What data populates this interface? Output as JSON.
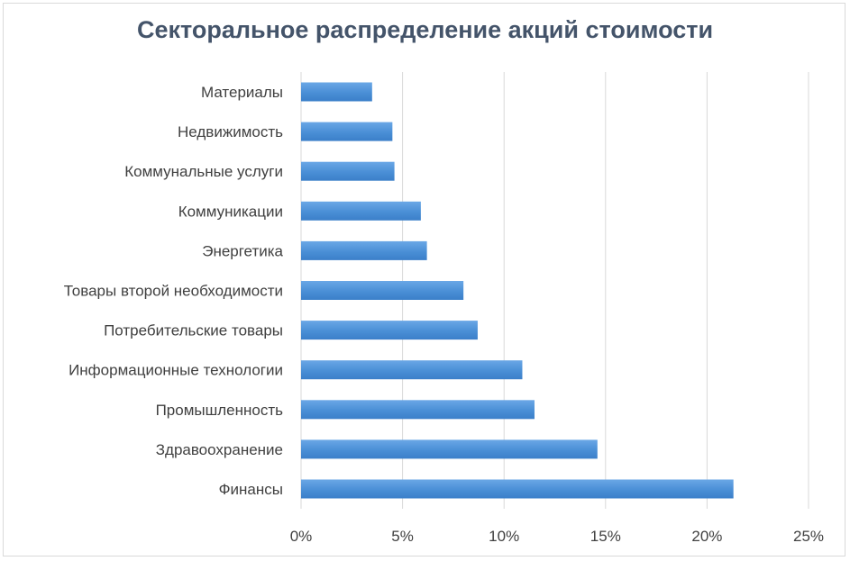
{
  "chart_data": {
    "type": "bar",
    "orientation": "horizontal",
    "title": "Секторальное распределение акций стоимости",
    "categories": [
      "Финансы",
      "Здравоохранение",
      "Промышленность",
      "Информационные технологии",
      "Потребительские товары",
      "Товары второй необходимости",
      "Энергетика",
      "Коммуникации",
      "Коммунальные услуги",
      "Недвижимость",
      "Материалы"
    ],
    "values": [
      21.3,
      14.6,
      11.5,
      10.9,
      8.7,
      8.0,
      6.2,
      5.9,
      4.6,
      4.5,
      3.5
    ],
    "xlim": [
      0,
      25
    ],
    "x_ticks": [
      0,
      5,
      10,
      15,
      20,
      25
    ],
    "x_tick_labels": [
      "0%",
      "5%",
      "10%",
      "15%",
      "20%",
      "25%"
    ],
    "grid": "vertical",
    "legend": "none",
    "bar_color": "#4a8fd6"
  }
}
